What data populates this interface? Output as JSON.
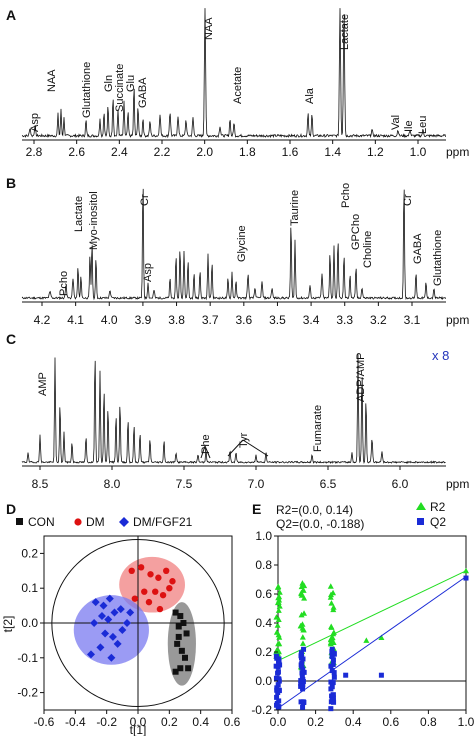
{
  "panels": {
    "A": {
      "letter": "A",
      "unit": "ppm",
      "ticks": [
        "2.8",
        "2.6",
        "2.4",
        "2.2",
        "2.0",
        "1.8",
        "1.6",
        "1.4",
        "1.2",
        "1.0"
      ],
      "labels": [
        "Asp",
        "NAA",
        "Glutathione",
        "Gln",
        "Succinate",
        "Glu",
        "GABA",
        "NAA",
        "Acetate",
        "Ala",
        "Lactate",
        "Val",
        "Ile",
        "Leu"
      ]
    },
    "B": {
      "letter": "B",
      "unit": "ppm",
      "ticks": [
        "4.2",
        "4.1",
        "4.0",
        "3.9",
        "3.8",
        "3.7",
        "3.6",
        "3.5",
        "3.4",
        "3.3",
        "3.2",
        "3.1"
      ],
      "labels": [
        "Pcho",
        "Lactate",
        "Myo-inositol",
        "Cr",
        "Asp",
        "Glycine",
        "Taurine",
        "Pcho",
        "GPCho",
        "Choline",
        "Cr",
        "GABA",
        "Glutathione"
      ]
    },
    "C": {
      "letter": "C",
      "unit": "ppm",
      "ticks": [
        "8.5",
        "8.0",
        "7.5",
        "7.0",
        "6.5",
        "6.0"
      ],
      "labels": [
        "AMP",
        "Phe",
        "Tyr",
        "Fumarate",
        "ADP/AMP"
      ],
      "scale_note": "x 8"
    },
    "D": {
      "letter": "D",
      "xlabel": "t[1]",
      "ylabel": "t[2]",
      "legend": [
        "CON",
        "DM",
        "DM/FGF21"
      ],
      "xticks": [
        "-0.6",
        "-0.4",
        "-0.2",
        "0.0",
        "0.2",
        "0.4",
        "0.6"
      ],
      "yticks": [
        "0.2",
        "0.1",
        "0.0",
        "-0.1",
        "-0.2"
      ]
    },
    "E": {
      "letter": "E",
      "stats": [
        "R2=(0.0, 0.14)",
        "Q2=(0.0, -0.188)"
      ],
      "legend": [
        "R2",
        "Q2"
      ],
      "xticks": [
        "0.0",
        "0.2",
        "0.4",
        "0.6",
        "0.8",
        "1.0"
      ],
      "yticks": [
        "1.0",
        "0.8",
        "0.6",
        "0.4",
        "0.2",
        "0.0",
        "-0.2"
      ]
    }
  },
  "chart_data": [
    {
      "type": "scatter",
      "xlabel": "t[1]",
      "ylabel": "t[2]",
      "xlim": [
        -0.6,
        0.6
      ],
      "ylim": [
        -0.25,
        0.25
      ],
      "series": [
        {
          "name": "CON",
          "color": "#111111",
          "marker": "square",
          "x": [
            0.24,
            0.27,
            0.29,
            0.26,
            0.31,
            0.25,
            0.28,
            0.3,
            0.27,
            0.24,
            0.32,
            0.26
          ],
          "y": [
            0.03,
            0.02,
            0.0,
            -0.01,
            -0.03,
            -0.06,
            -0.08,
            -0.1,
            -0.13,
            -0.14,
            -0.13,
            -0.04
          ]
        },
        {
          "name": "DM",
          "color": "#dd1111",
          "marker": "circle",
          "x": [
            -0.04,
            0.02,
            0.08,
            0.13,
            0.18,
            0.22,
            0.04,
            0.11,
            0.16,
            0.2,
            0.07,
            -0.02,
            0.14
          ],
          "y": [
            0.15,
            0.16,
            0.14,
            0.13,
            0.15,
            0.12,
            0.09,
            0.09,
            0.08,
            0.1,
            0.06,
            0.07,
            0.04
          ]
        },
        {
          "name": "DM/FGF21",
          "color": "#1a2bd6",
          "marker": "diamond",
          "x": [
            -0.27,
            -0.22,
            -0.18,
            -0.23,
            -0.19,
            -0.15,
            -0.11,
            -0.28,
            -0.21,
            -0.16,
            -0.1,
            -0.07,
            -0.24,
            -0.3,
            -0.17,
            -0.05,
            -0.13
          ],
          "y": [
            0.06,
            0.05,
            0.07,
            0.02,
            0.01,
            0.03,
            0.04,
            0.0,
            -0.03,
            -0.04,
            -0.02,
            0.0,
            -0.07,
            -0.09,
            -0.1,
            0.03,
            -0.06
          ]
        }
      ],
      "ellipses": [
        {
          "group": "DM",
          "color": "#f08080",
          "cx": 0.09,
          "cy": 0.11,
          "rx": 0.21,
          "ry": 0.08
        },
        {
          "group": "DM/FGF21",
          "color": "#7a7af0",
          "cx": -0.17,
          "cy": -0.02,
          "rx": 0.24,
          "ry": 0.1
        },
        {
          "group": "CON",
          "color": "#777777",
          "cx": 0.28,
          "cy": -0.06,
          "rx": 0.09,
          "ry": 0.12
        }
      ],
      "confidence_circle": {
        "rx": 0.55,
        "ry": 0.24
      }
    },
    {
      "type": "scatter",
      "xlim": [
        0.0,
        1.0
      ],
      "ylim": [
        -0.2,
        1.0
      ],
      "series": [
        {
          "name": "R2",
          "color": "#22dd22",
          "marker": "triangle",
          "x_groups": [
            0.0,
            0.13,
            0.29
          ],
          "y_range": [
            0.08,
            0.68
          ],
          "extra_points": [
            [
              0.47,
              0.28
            ],
            [
              0.55,
              0.3
            ],
            [
              1.0,
              0.76
            ]
          ],
          "trend": [
            [
              0.0,
              0.14
            ],
            [
              1.0,
              0.76
            ]
          ]
        },
        {
          "name": "Q2",
          "color": "#1a2bd6",
          "marker": "square",
          "x_groups": [
            0.0,
            0.13,
            0.29
          ],
          "y_range": [
            -0.2,
            0.22
          ],
          "extra_points": [
            [
              0.36,
              0.04
            ],
            [
              0.55,
              0.04
            ],
            [
              1.0,
              0.71
            ]
          ],
          "trend": [
            [
              0.0,
              -0.188
            ],
            [
              1.0,
              0.72
            ]
          ]
        }
      ]
    }
  ]
}
